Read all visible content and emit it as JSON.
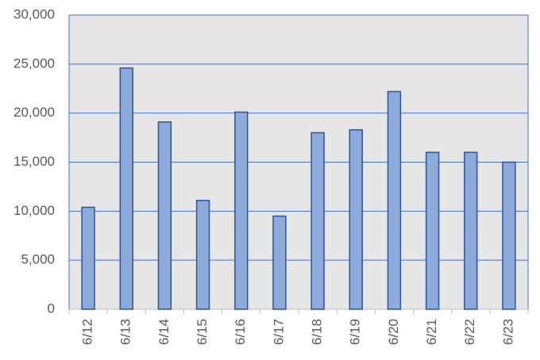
{
  "chart_data": {
    "type": "bar",
    "categories": [
      "6/12",
      "6/13",
      "6/14",
      "6/15",
      "6/16",
      "6/17",
      "6/18",
      "6/19",
      "6/20",
      "6/21",
      "6/22",
      "6/23"
    ],
    "values": [
      10400,
      24600,
      19100,
      11100,
      20100,
      9500,
      18000,
      18300,
      22200,
      16000,
      16000,
      15000
    ],
    "color": "#8eaadb",
    "edge_color": "#2f5597",
    "plot_background": "#e7e6e6",
    "grid_color": "#4472c4",
    "ylim": [
      0,
      30000
    ],
    "yticks": [
      0,
      {
        "value": 5000,
        "label": "5,000"
      },
      {
        "value": 10000,
        "label": "10,000"
      },
      {
        "value": 15000,
        "label": "15,000"
      },
      {
        "value": 20000,
        "label": "20,000"
      },
      {
        "value": 25000,
        "label": "25,000"
      },
      {
        "value": 30000,
        "label": "30,000"
      }
    ],
    "grid": true
  }
}
